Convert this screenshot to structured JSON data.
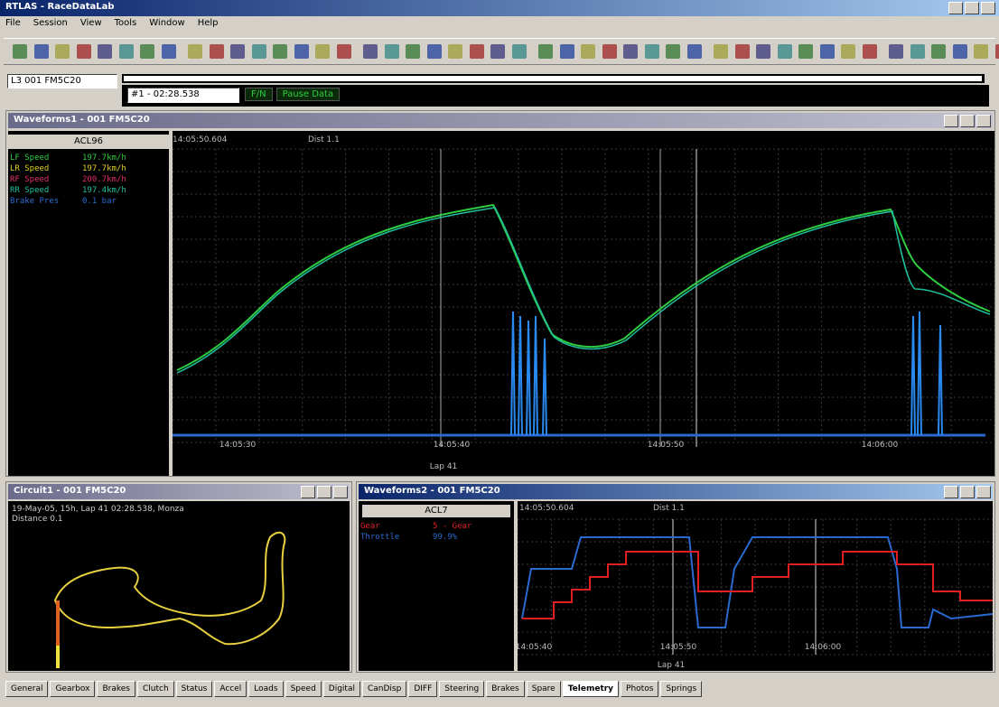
{
  "window": {
    "title": "RTLAS - RaceDataLab"
  },
  "menu": [
    "File",
    "Session",
    "View",
    "Tools",
    "Window",
    "Help"
  ],
  "session": {
    "car": "L3 001 FM5C20",
    "lap": "#1 - 02:28.538",
    "buttons": [
      "F/N",
      "Pause Data"
    ]
  },
  "waveform1": {
    "title": "Waveforms1 - 001 FM5C20",
    "panel_header": "ACL96",
    "legend": [
      {
        "name": "LF Speed",
        "value": "197.7km/h",
        "color": "#2ecc40"
      },
      {
        "name": "LR Speed",
        "value": "197.7km/h",
        "color": "#e0d020"
      },
      {
        "name": "RF Speed",
        "value": "200.7km/h",
        "color": "#e0306a"
      },
      {
        "name": "RR Speed",
        "value": "197.4km/h",
        "color": "#20c0a0"
      },
      {
        "name": "Brake Pres",
        "value": "0.1 bar",
        "color": "#2a6ad0"
      }
    ],
    "cursor_time": "14:05:50.604",
    "cursor_dist": "Dist 1.1",
    "x_labels": [
      "14:05:30",
      "14:05:40",
      "14:05:50",
      "14:06:00"
    ],
    "x_title": "Lap 41"
  },
  "circuit": {
    "title": "Circuit1 - 001 FM5C20",
    "info": [
      "19-May-05, 15h, Lap 41 02:28.538, Monza",
      "Distance 0.1"
    ]
  },
  "waveform2": {
    "title": "Waveforms2 - 001 FM5C20",
    "panel_header": "ACL7",
    "legend": [
      {
        "name": "Gear",
        "value": "5 - Gear",
        "color": "#e02020"
      },
      {
        "name": "Throttle",
        "value": "99.9%",
        "color": "#2a6ad0"
      }
    ],
    "cursor_time": "14:05:50.604",
    "cursor_dist": "Dist 1.1",
    "x_labels": [
      "14:05:40",
      "14:05:50",
      "14:06:00"
    ],
    "x_title": "Lap 41"
  },
  "tabs": [
    "General",
    "Gearbox",
    "Brakes",
    "Clutch",
    "Status",
    "Accel",
    "Loads",
    "Speed",
    "Digital",
    "CanDisp",
    "DIFF",
    "Steering",
    "Brakes",
    "Spare",
    "Telemetry",
    "Photos",
    "Springs"
  ],
  "selected_tab": "Telemetry"
}
